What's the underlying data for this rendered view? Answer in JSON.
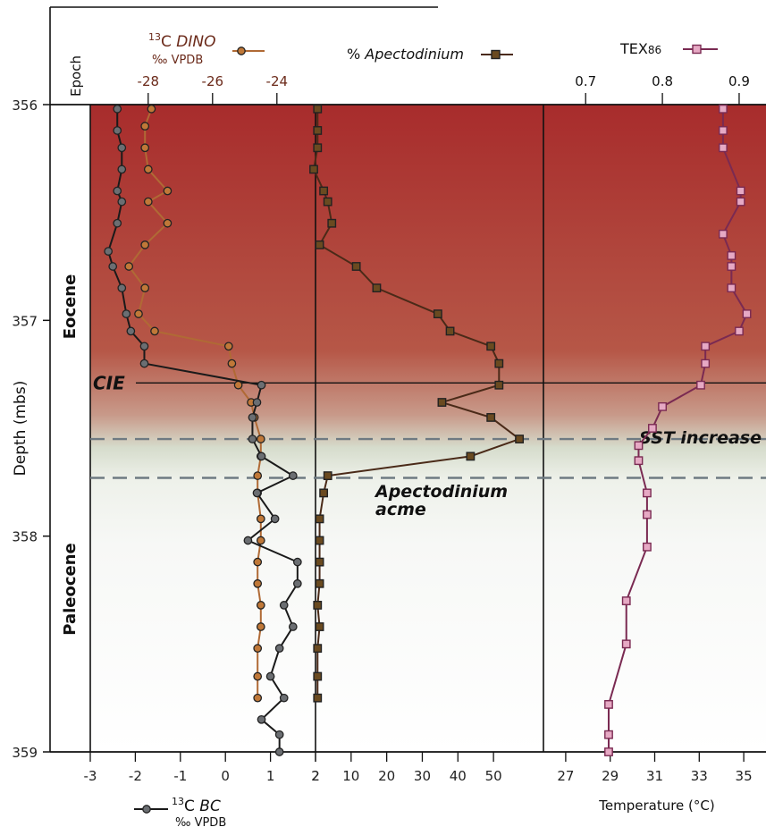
{
  "chart_data": {
    "type": "line",
    "orientation": "vertical-profile",
    "depth_axis": {
      "label": "Depth (mbs)",
      "ticks": [
        "356",
        "357",
        "358",
        "359"
      ],
      "range": [
        356,
        359
      ]
    },
    "epoch_header": "Epoch",
    "epochs": [
      {
        "name": "Eocene",
        "depth_range": [
          356,
          357.3
        ]
      },
      {
        "name": "Paleocene",
        "depth_range": [
          357.3,
          359
        ]
      }
    ],
    "annotations": {
      "cie": {
        "text": "CIE",
        "depth": 357.29
      },
      "sst": {
        "text": "SST increase",
        "depth": 357.55
      },
      "acme_line1": "Apectodinium",
      "acme_line2": "acme",
      "acme_depths": [
        357.55,
        357.73
      ]
    },
    "panels": [
      {
        "id": "carbon",
        "series": [
          {
            "name": "13C DINO",
            "name_sup": "13",
            "name_main": "C ",
            "name_italic": "DINO",
            "unit": "‰ VPDB",
            "color": "#b06a35",
            "axis_ticks": [
              "-28",
              "-26",
              "-24"
            ],
            "axis_range": [
              -29.8,
              -22.8
            ],
            "depth": [
              356.02,
              356.1,
              356.2,
              356.3,
              356.4,
              356.45,
              356.55,
              356.65,
              356.75,
              356.85,
              356.97,
              357.05,
              357.12,
              357.2,
              357.3,
              357.38,
              357.45,
              357.55,
              357.63,
              357.72,
              357.8,
              357.92,
              358.02,
              358.12,
              358.22,
              358.32,
              358.42,
              358.52,
              358.65,
              358.75
            ],
            "values": [
              -27.9,
              -28.1,
              -28.1,
              -28.0,
              -27.4,
              -28.0,
              -27.4,
              -28.1,
              -28.6,
              -28.1,
              -28.3,
              -27.8,
              -25.5,
              -25.4,
              -25.2,
              -24.8,
              -24.7,
              -24.5,
              -24.5,
              -24.6,
              -24.6,
              -24.5,
              -24.5,
              -24.6,
              -24.6,
              -24.5,
              -24.5,
              -24.6,
              -24.6,
              -24.6
            ]
          },
          {
            "name": "13C BC",
            "name_sup": "13",
            "name_main": "C ",
            "name_italic": "BC",
            "unit": "‰ VPDB",
            "color": "#1a1a1a",
            "axis_ticks": [
              "-3",
              "-2",
              "-1",
              "0",
              "1",
              "2"
            ],
            "axis_range": [
              -3,
              2
            ],
            "depth": [
              356.02,
              356.12,
              356.2,
              356.3,
              356.4,
              356.45,
              356.55,
              356.68,
              356.75,
              356.85,
              356.97,
              357.05,
              357.12,
              357.2,
              357.3,
              357.38,
              357.45,
              357.55,
              357.63,
              357.72,
              357.8,
              357.92,
              358.02,
              358.12,
              358.22,
              358.32,
              358.42,
              358.52,
              358.65,
              358.75,
              358.85,
              358.92,
              359.0
            ],
            "values": [
              -2.4,
              -2.4,
              -2.3,
              -2.3,
              -2.4,
              -2.3,
              -2.4,
              -2.6,
              -2.5,
              -2.3,
              -2.2,
              -2.1,
              -1.8,
              -1.8,
              0.8,
              0.7,
              0.6,
              0.6,
              0.8,
              1.5,
              0.7,
              1.1,
              0.5,
              1.6,
              1.6,
              1.3,
              1.5,
              1.2,
              1.0,
              1.3,
              0.8,
              1.2,
              1.2
            ]
          }
        ]
      },
      {
        "id": "apectodinium",
        "series": [
          {
            "name": "% Apectodinium",
            "name_prefix": "% ",
            "name_italic": "Apectodinium",
            "color": "#4a2a18",
            "axis_ticks": [
              "2",
              "10",
              "20",
              "30",
              "40",
              "50"
            ],
            "axis_range": [
              0,
              57
            ],
            "depth": [
              356.02,
              356.12,
              356.2,
              356.3,
              356.4,
              356.45,
              356.55,
              356.65,
              356.75,
              356.85,
              356.97,
              357.05,
              357.12,
              357.2,
              357.3,
              357.38,
              357.45,
              357.55,
              357.63,
              357.72,
              357.8,
              357.92,
              358.02,
              358.12,
              358.22,
              358.32,
              358.42,
              358.52,
              358.65,
              358.75
            ],
            "values": [
              2.5,
              2.5,
              2.5,
              1.5,
              4,
              5,
              6,
              3,
              12,
              17,
              32,
              35,
              45,
              47,
              47,
              33,
              45,
              52,
              40,
              5,
              4,
              3,
              3,
              3,
              3,
              2.5,
              3,
              2.5,
              2.5,
              2.5
            ]
          }
        ]
      },
      {
        "id": "tex86",
        "series": [
          {
            "name": "TEX86",
            "name_main": "TEX",
            "name_sub": "86",
            "color": "#7a2a52",
            "fill": "#e6a9c4",
            "axis_ticks": [
              "0.7",
              "0.8",
              "0.9"
            ],
            "axis_range": [
              0.645,
              0.935
            ],
            "temp_label": "Temperature (°C)",
            "temp_ticks": [
              "27",
              "29",
              "31",
              "33",
              "35"
            ],
            "temp_range": [
              26,
              36
            ],
            "depth": [
              356.02,
              356.12,
              356.2,
              356.4,
              356.45,
              356.6,
              356.7,
              356.75,
              356.85,
              356.97,
              357.05,
              357.12,
              357.2,
              357.3,
              357.4,
              357.5,
              357.58,
              357.65,
              357.8,
              357.9,
              358.05,
              358.3,
              358.5,
              358.78,
              358.92,
              359.0
            ],
            "values": [
              0.879,
              0.879,
              0.879,
              0.902,
              0.902,
              0.879,
              0.89,
              0.89,
              0.89,
              0.91,
              0.9,
              0.856,
              0.856,
              0.85,
              0.8,
              0.787,
              0.769,
              0.769,
              0.78,
              0.78,
              0.78,
              0.753,
              0.753,
              0.73,
              0.73,
              0.73
            ]
          }
        ]
      }
    ]
  }
}
